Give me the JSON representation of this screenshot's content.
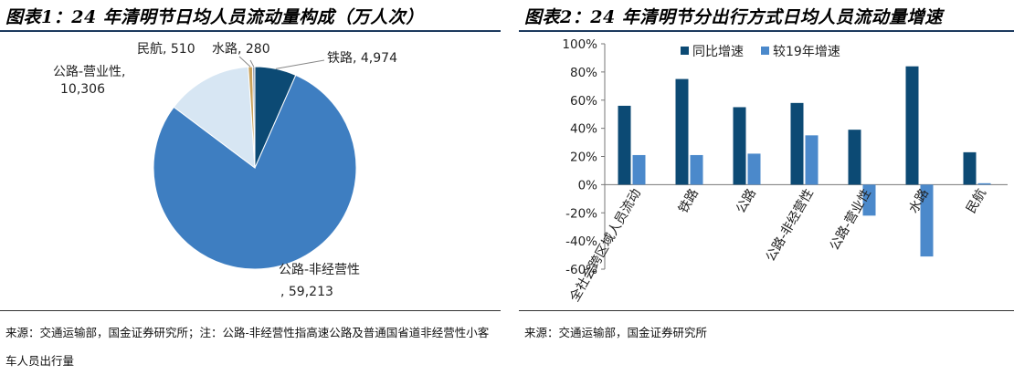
{
  "left": {
    "title": "图表1：24 年清明节日均人员流动量构成（万人次）",
    "source": "来源：交通运输部，国金证券研究所；注：公路-非经营性指高速公路及普通国省道非经营性小客车人员出行量",
    "colors": {
      "铁路": "#0c4a74",
      "公路-非经营性": "#3e7ec1",
      "公路-营业性": "#d7e6f3",
      "水路": "#9aa4b5",
      "民航": "#c9a15a"
    }
  },
  "right": {
    "title": "图表2：24 年清明节分出行方式日均人员流动量增速",
    "source": "来源：交通运输部，国金证券研究所",
    "colors": {
      "同比增速": "#0c4a74",
      "较19年增速": "#4b89cb"
    }
  },
  "chart_data": [
    {
      "type": "pie",
      "labels": [
        "铁路",
        "公路-非经营性",
        "公路-营业性",
        "民航",
        "水路"
      ],
      "values": [
        4974,
        59213,
        10306,
        510,
        280
      ],
      "data_labels": [
        "铁路, 4,974",
        "公路-非经营性, 59,213",
        "公路-营业性, 10,306",
        "民航, 510",
        "水路, 280"
      ],
      "start_angle_deg": 0,
      "direction": "clockwise"
    },
    {
      "type": "bar",
      "categories": [
        "全社会跨区域人员流动",
        "铁路",
        "公路",
        "公路-非经营性",
        "公路-营业性",
        "水路",
        "民航"
      ],
      "series": [
        {
          "name": "同比增速",
          "values": [
            56,
            75,
            55,
            58,
            39,
            84,
            23
          ]
        },
        {
          "name": "较19年增速",
          "values": [
            21,
            21,
            22,
            35,
            -22,
            -51,
            1
          ]
        }
      ],
      "ylim": [
        -60,
        100
      ],
      "yticks": [
        -60,
        -40,
        -20,
        0,
        20,
        40,
        60,
        80,
        100
      ],
      "ytick_labels": [
        "-60%",
        "-40%",
        "-20%",
        "0%",
        "20%",
        "40%",
        "60%",
        "80%",
        "100%"
      ],
      "legend": "top"
    }
  ]
}
